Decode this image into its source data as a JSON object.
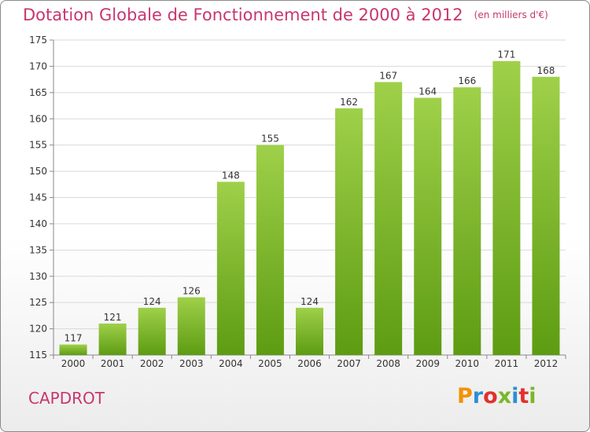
{
  "header": {
    "title": "Dotation Globale de Fonctionnement de 2000 à 2012",
    "subtitle": "(en milliers d'€)"
  },
  "commune": "CAPDROT",
  "logo": {
    "text": "Proxiti",
    "colors": [
      "#f39200",
      "#2b8fd6",
      "#e2312d",
      "#78b82a",
      "#2b8fd6",
      "#e2312d",
      "#78b82a"
    ]
  },
  "colors": {
    "accent": "#c8366e",
    "bar_top": "#9fd04a",
    "bar_bottom": "#5d9c12",
    "grid": "#d9d9d9"
  },
  "chart_data": {
    "type": "bar",
    "title": "Dotation Globale de Fonctionnement de 2000 à 2012",
    "subtitle": "(en milliers d'€)",
    "categories": [
      "2000",
      "2001",
      "2002",
      "2003",
      "2004",
      "2005",
      "2006",
      "2007",
      "2008",
      "2009",
      "2010",
      "2011",
      "2012"
    ],
    "values": [
      117,
      121,
      124,
      126,
      148,
      155,
      124,
      162,
      167,
      164,
      166,
      171,
      168
    ],
    "ylim": [
      115,
      175
    ],
    "yticks": [
      115,
      120,
      125,
      130,
      135,
      140,
      145,
      150,
      155,
      160,
      165,
      170,
      175
    ],
    "grid": true,
    "data_labels": true
  }
}
